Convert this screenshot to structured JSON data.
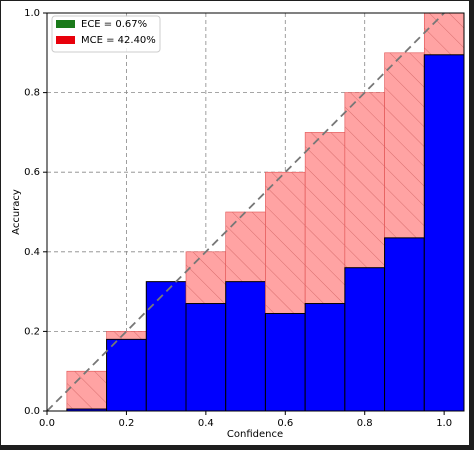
{
  "chart_data": {
    "type": "reliability",
    "x_label": "Confidence",
    "y_label": "Accuracy",
    "x": [
      0.1,
      0.2,
      0.3,
      0.4,
      0.5,
      0.6,
      0.7,
      0.8,
      0.9,
      1.0
    ],
    "bin_width": 0.1,
    "accuracy": {
      "color": "#0000ff",
      "values": [
        0.005,
        0.18,
        0.325,
        0.27,
        0.325,
        0.245,
        0.27,
        0.36,
        0.435,
        0.895
      ]
    },
    "confidence": {
      "color": "#ffa3a3",
      "values": [
        0.1,
        0.2,
        0.3,
        0.4,
        0.5,
        0.6,
        0.7,
        0.8,
        0.9,
        1.0
      ]
    },
    "legend": [
      {
        "label": "ECE = 0.67%",
        "color": "#1a7a1a"
      },
      {
        "label": "MCE = 42.40%",
        "color": "#e8000b"
      }
    ],
    "xlim": [
      0,
      1.05
    ],
    "ylim": [
      0,
      1
    ],
    "xticks": [
      {
        "value": 0,
        "label": "0.0"
      },
      {
        "value": 0.2,
        "label": "0.2"
      },
      {
        "value": 0.4,
        "label": "0.4"
      },
      {
        "value": 0.6,
        "label": "0.6"
      },
      {
        "value": 0.8,
        "label": "0.8"
      },
      {
        "value": 1,
        "label": "1.0"
      }
    ],
    "yticks": [
      {
        "value": 0,
        "label": "0.0"
      },
      {
        "value": 0.2,
        "label": "0.2"
      },
      {
        "value": 0.4,
        "label": "0.4"
      },
      {
        "value": 0.6,
        "label": "0.6"
      },
      {
        "value": 0.8,
        "label": "0.8"
      },
      {
        "value": 1,
        "label": "1.0"
      }
    ],
    "grid": true
  }
}
